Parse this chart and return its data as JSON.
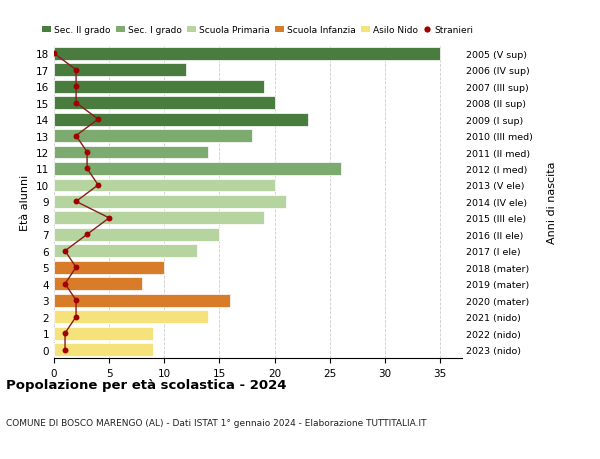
{
  "ages": [
    18,
    17,
    16,
    15,
    14,
    13,
    12,
    11,
    10,
    9,
    8,
    7,
    6,
    5,
    4,
    3,
    2,
    1,
    0
  ],
  "bar_values": [
    35,
    12,
    19,
    20,
    23,
    18,
    14,
    26,
    20,
    21,
    19,
    15,
    13,
    10,
    8,
    16,
    14,
    9,
    9
  ],
  "stranieri_values": [
    0,
    2,
    2,
    2,
    4,
    2,
    3,
    3,
    4,
    2,
    5,
    3,
    1,
    2,
    1,
    2,
    2,
    1,
    1
  ],
  "bar_colors": [
    "#4a7c3f",
    "#4a7c3f",
    "#4a7c3f",
    "#4a7c3f",
    "#4a7c3f",
    "#7daa6e",
    "#7daa6e",
    "#7daa6e",
    "#b5d4a0",
    "#b5d4a0",
    "#b5d4a0",
    "#b5d4a0",
    "#b5d4a0",
    "#d97c2a",
    "#d97c2a",
    "#d97c2a",
    "#f5e27a",
    "#f5e27a",
    "#f5e27a"
  ],
  "right_labels": [
    "2005 (V sup)",
    "2006 (IV sup)",
    "2007 (III sup)",
    "2008 (II sup)",
    "2009 (I sup)",
    "2010 (III med)",
    "2011 (II med)",
    "2012 (I med)",
    "2013 (V ele)",
    "2014 (IV ele)",
    "2015 (III ele)",
    "2016 (II ele)",
    "2017 (I ele)",
    "2018 (mater)",
    "2019 (mater)",
    "2020 (mater)",
    "2021 (nido)",
    "2022 (nido)",
    "2023 (nido)"
  ],
  "legend_labels": [
    "Sec. II grado",
    "Sec. I grado",
    "Scuola Primaria",
    "Scuola Infanzia",
    "Asilo Nido",
    "Stranieri"
  ],
  "legend_colors": [
    "#4a7c3f",
    "#7daa6e",
    "#b5d4a0",
    "#d97c2a",
    "#f5e27a",
    "#a00000"
  ],
  "ylabel_right": "Anni di nascita",
  "title": "Popolazione per età scolastica - 2024",
  "subtitle": "COMUNE DI BOSCO MARENGO (AL) - Dati ISTAT 1° gennaio 2024 - Elaborazione TUTTITALIA.IT",
  "xlim": [
    0,
    37
  ],
  "xticks": [
    0,
    5,
    10,
    15,
    20,
    25,
    30,
    35
  ],
  "stranieri_color": "#a00000",
  "line_color": "#8b1a1a",
  "bg_color": "#ffffff",
  "grid_color": "#cccccc"
}
